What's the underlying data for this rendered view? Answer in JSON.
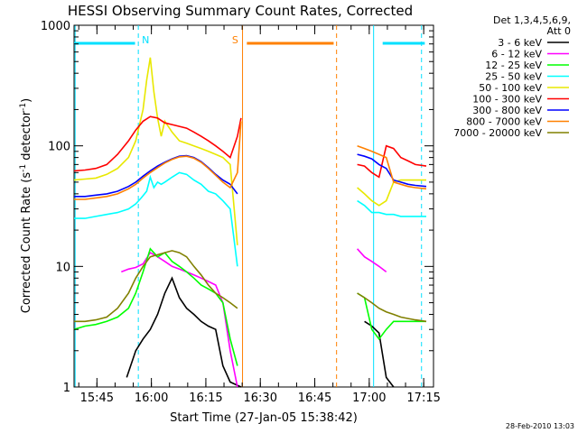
{
  "chart_data": {
    "type": "line",
    "title": "HESSI Observing Summary Count Rates, Corrected",
    "xlabel": "Start Time (27-Jan-05 15:38:42)",
    "ylabel_main": "Corrected Count Rate (s",
    "ylabel_sup1": "-1",
    "ylabel_mid": " detector",
    "ylabel_sup2": "-1",
    "ylabel_end": ")",
    "yscale": "log",
    "ylim": [
      1,
      1000
    ],
    "y_ticks": [
      {
        "v": 1,
        "label": "1"
      },
      {
        "v": 10,
        "label": "10"
      },
      {
        "v": 100,
        "label": "100"
      },
      {
        "v": 1000,
        "label": "1000"
      }
    ],
    "xlim_min": [
      0,
      99
    ],
    "x_ticks": [
      {
        "v": 6.3,
        "label": "15:45"
      },
      {
        "v": 21.3,
        "label": "16:00"
      },
      {
        "v": 36.3,
        "label": "16:15"
      },
      {
        "v": 51.3,
        "label": "16:30"
      },
      {
        "v": 66.3,
        "label": "16:45"
      },
      {
        "v": 81.3,
        "label": "17:00"
      },
      {
        "v": 96.3,
        "label": "17:15"
      }
    ],
    "legend_header": [
      "Det 1,3,4,5,6,9,",
      "Att 0"
    ],
    "legend_position": "right",
    "timestamp": "28-Feb-2010 13:03",
    "markers": [
      {
        "label": "N",
        "x": 17.7,
        "color": "#00e0ff"
      },
      {
        "label": "S",
        "x": 45.0,
        "color": "#ff8000"
      }
    ],
    "series": [
      {
        "name": "3 - 6 keV",
        "color": "#000000",
        "x": [
          14.5,
          17,
          19,
          21,
          23,
          25,
          27,
          29,
          31,
          33,
          35,
          37,
          39,
          41,
          43,
          46,
          80,
          82,
          84,
          86,
          88
        ],
        "y": [
          1.2,
          2.0,
          2.5,
          3.0,
          4.0,
          6.0,
          8.0,
          5.5,
          4.5,
          4.0,
          3.5,
          3.2,
          3.0,
          1.5,
          1.1,
          1.0,
          3.5,
          3.2,
          2.8,
          1.2,
          1.0
        ]
      },
      {
        "name": "6 - 12 keV",
        "color": "#ff00ff",
        "x": [
          13,
          15,
          17,
          19,
          21,
          23,
          25,
          27,
          29,
          31,
          33,
          35,
          37,
          39,
          41,
          43,
          45,
          78,
          80,
          82,
          84,
          86
        ],
        "y": [
          9.0,
          9.5,
          9.8,
          10.5,
          13.0,
          12.0,
          11.0,
          10.0,
          9.5,
          9.0,
          8.5,
          8.0,
          7.5,
          7.0,
          5.0,
          2.0,
          1.0,
          14.0,
          12.0,
          11.0,
          10.0,
          9.0
        ]
      },
      {
        "name": "12 - 25 keV",
        "color": "#00ff00",
        "x": [
          0,
          3,
          6,
          9,
          12,
          15,
          17,
          19,
          21,
          23,
          25,
          27,
          29,
          31,
          33,
          35,
          37,
          39,
          41,
          43,
          45,
          78,
          80,
          82,
          84,
          86,
          88,
          90,
          92,
          94,
          97
        ],
        "y": [
          3.0,
          3.2,
          3.3,
          3.5,
          3.8,
          4.5,
          6.0,
          9.0,
          14.0,
          12.0,
          13.0,
          11.0,
          10.0,
          9.0,
          8.0,
          7.0,
          6.5,
          6.0,
          5.0,
          2.5,
          1.5,
          6.0,
          5.5,
          3.0,
          2.5,
          3.0,
          3.5,
          3.5,
          3.5,
          3.5,
          3.5
        ]
      },
      {
        "name": "25 - 50 keV",
        "color": "#00ffff",
        "x": [
          0,
          3,
          6,
          9,
          12,
          15,
          17,
          18.5,
          20,
          21,
          22,
          23,
          24,
          25,
          27,
          29,
          31,
          33,
          35,
          37,
          39,
          41,
          43,
          45,
          78,
          80,
          82,
          84,
          86,
          88,
          90,
          92,
          94,
          97
        ],
        "y": [
          25,
          25,
          26,
          27,
          28,
          30,
          33,
          37,
          42,
          55,
          45,
          50,
          48,
          50,
          55,
          60,
          58,
          52,
          48,
          42,
          40,
          35,
          30,
          10,
          35,
          32,
          28,
          28,
          27,
          27,
          26,
          26,
          26,
          26
        ]
      },
      {
        "name": "50 - 100 keV",
        "color": "#e8e800",
        "x": [
          0,
          3,
          6,
          9,
          12,
          15,
          17,
          19,
          20,
          21,
          22,
          23,
          24,
          25,
          27,
          29,
          31,
          33,
          35,
          37,
          39,
          41,
          43,
          45,
          78,
          80,
          82,
          84,
          86,
          88,
          90,
          92,
          94,
          97
        ],
        "y": [
          52,
          53,
          54,
          58,
          65,
          80,
          110,
          200,
          350,
          540,
          280,
          170,
          120,
          160,
          130,
          110,
          105,
          100,
          95,
          90,
          85,
          80,
          70,
          15,
          45,
          40,
          35,
          32,
          35,
          50,
          52,
          52,
          52,
          52
        ]
      },
      {
        "name": "100 - 300 keV",
        "color": "#ff0000",
        "x": [
          0,
          3,
          6,
          9,
          12,
          15,
          17,
          19,
          21,
          23,
          25,
          27,
          29,
          31,
          33,
          35,
          37,
          39,
          41,
          43,
          45,
          46,
          78,
          80,
          82,
          84,
          86,
          88,
          90,
          92,
          94,
          97
        ],
        "y": [
          62,
          63,
          65,
          70,
          85,
          110,
          135,
          160,
          175,
          170,
          155,
          150,
          145,
          140,
          130,
          120,
          110,
          100,
          90,
          80,
          120,
          170,
          70,
          68,
          60,
          55,
          100,
          95,
          80,
          75,
          70,
          68
        ]
      },
      {
        "name": "300 - 800 keV",
        "color": "#0000ff",
        "x": [
          0,
          3,
          6,
          9,
          12,
          15,
          17,
          19,
          21,
          23,
          25,
          27,
          29,
          31,
          33,
          35,
          37,
          39,
          41,
          43,
          45,
          78,
          80,
          82,
          84,
          86,
          88,
          90,
          92,
          94,
          97
        ],
        "y": [
          38,
          38,
          39,
          40,
          42,
          46,
          50,
          56,
          62,
          68,
          73,
          78,
          82,
          83,
          80,
          74,
          66,
          58,
          52,
          48,
          40,
          85,
          82,
          78,
          70,
          65,
          52,
          50,
          48,
          47,
          46
        ]
      },
      {
        "name": "800 - 7000 keV",
        "color": "#ff8000",
        "x": [
          0,
          3,
          6,
          9,
          12,
          15,
          17,
          19,
          21,
          23,
          25,
          27,
          29,
          31,
          33,
          35,
          37,
          39,
          41,
          43,
          45,
          46,
          78,
          80,
          82,
          84,
          86,
          88,
          90,
          92,
          94,
          97
        ],
        "y": [
          36,
          36,
          37,
          38,
          40,
          44,
          48,
          54,
          60,
          66,
          72,
          77,
          81,
          82,
          79,
          73,
          65,
          57,
          50,
          45,
          60,
          160,
          100,
          95,
          90,
          85,
          80,
          50,
          48,
          46,
          45,
          44
        ]
      },
      {
        "name": "7000 - 20000 keV",
        "color": "#808000",
        "x": [
          0,
          3,
          6,
          9,
          12,
          15,
          17,
          19,
          21,
          23,
          25,
          27,
          29,
          31,
          33,
          35,
          37,
          39,
          41,
          43,
          45,
          78,
          80,
          82,
          84,
          86,
          88,
          90,
          92,
          94,
          97
        ],
        "y": [
          3.5,
          3.5,
          3.6,
          3.8,
          4.5,
          6.0,
          8.0,
          10.0,
          12.0,
          12.5,
          13.0,
          13.5,
          13.0,
          12.0,
          10.0,
          8.5,
          7.0,
          6.0,
          5.5,
          5.0,
          4.5,
          6.0,
          5.5,
          5.0,
          4.5,
          4.2,
          4.0,
          3.8,
          3.7,
          3.6,
          3.5
        ]
      }
    ]
  }
}
